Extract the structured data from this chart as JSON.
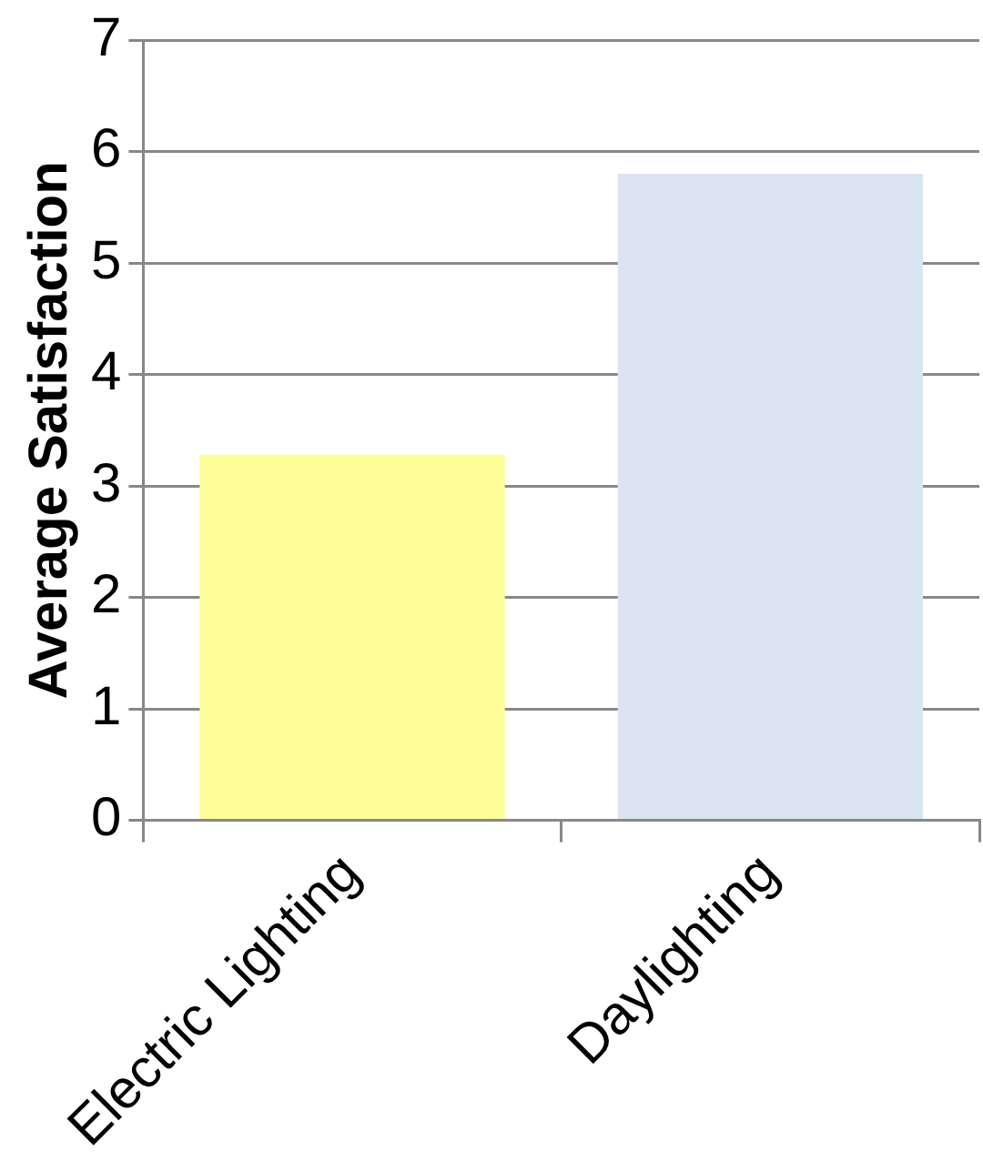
{
  "chart_data": {
    "type": "bar",
    "ylabel": "Average Satisfaction",
    "categories": [
      "Electric Lighting",
      "Daylighting"
    ],
    "series": [
      {
        "colors": [
          "#fefe99",
          "#dbe5f1"
        ],
        "values": [
          3.28,
          5.8
        ]
      }
    ],
    "ylim": [
      0,
      7
    ],
    "yticks": [
      0,
      1,
      2,
      3,
      4,
      5,
      6,
      7
    ],
    "grid": "y",
    "legend": false
  }
}
